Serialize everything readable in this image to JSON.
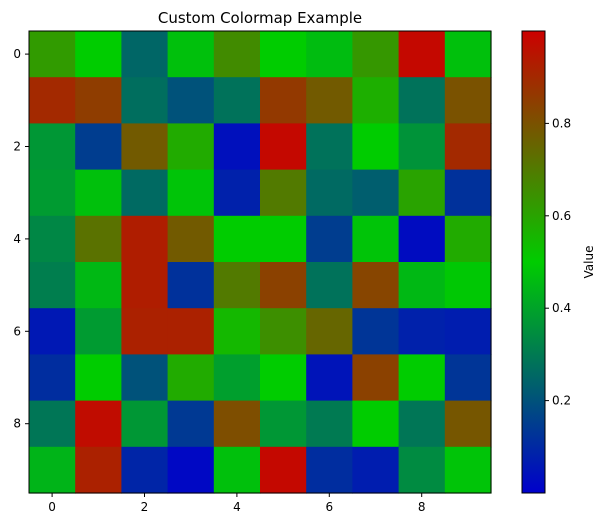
{
  "chart_data": {
    "type": "heatmap",
    "title": "Custom Colormap Example",
    "colorbar_label": "Value",
    "x_ticks": [
      "0",
      "2",
      "4",
      "6",
      "8"
    ],
    "y_ticks": [
      "0",
      "2",
      "4",
      "6",
      "8"
    ],
    "colorbar_ticks": [
      "0.2",
      "0.4",
      "0.6",
      "0.8"
    ],
    "colorbar_tick_values": [
      0.2,
      0.4,
      0.6,
      0.8
    ],
    "color_range": [
      0.0,
      1.0
    ],
    "colormap": [
      "#0000cc",
      "#00cc00",
      "#cc0000"
    ],
    "grid": false,
    "values": [
      [
        0.62,
        0.5,
        0.25,
        0.47,
        0.66,
        0.5,
        0.46,
        0.63,
        0.98,
        0.47
      ],
      [
        0.9,
        0.85,
        0.27,
        0.2,
        0.28,
        0.86,
        0.78,
        0.57,
        0.28,
        0.8
      ],
      [
        0.37,
        0.15,
        0.78,
        0.58,
        0.04,
        0.98,
        0.28,
        0.5,
        0.36,
        0.9
      ],
      [
        0.38,
        0.47,
        0.26,
        0.48,
        0.08,
        0.7,
        0.26,
        0.23,
        0.6,
        0.12
      ],
      [
        0.33,
        0.72,
        0.93,
        0.78,
        0.5,
        0.5,
        0.15,
        0.48,
        0.03,
        0.58
      ],
      [
        0.31,
        0.45,
        0.93,
        0.12,
        0.7,
        0.84,
        0.28,
        0.83,
        0.45,
        0.49
      ],
      [
        0.06,
        0.38,
        0.92,
        0.92,
        0.55,
        0.65,
        0.75,
        0.13,
        0.08,
        0.07
      ],
      [
        0.11,
        0.5,
        0.2,
        0.58,
        0.39,
        0.5,
        0.05,
        0.84,
        0.5,
        0.13
      ],
      [
        0.29,
        0.97,
        0.37,
        0.14,
        0.81,
        0.37,
        0.3,
        0.5,
        0.29,
        0.79
      ],
      [
        0.44,
        0.92,
        0.09,
        0.02,
        0.47,
        0.98,
        0.11,
        0.07,
        0.34,
        0.48
      ]
    ]
  }
}
